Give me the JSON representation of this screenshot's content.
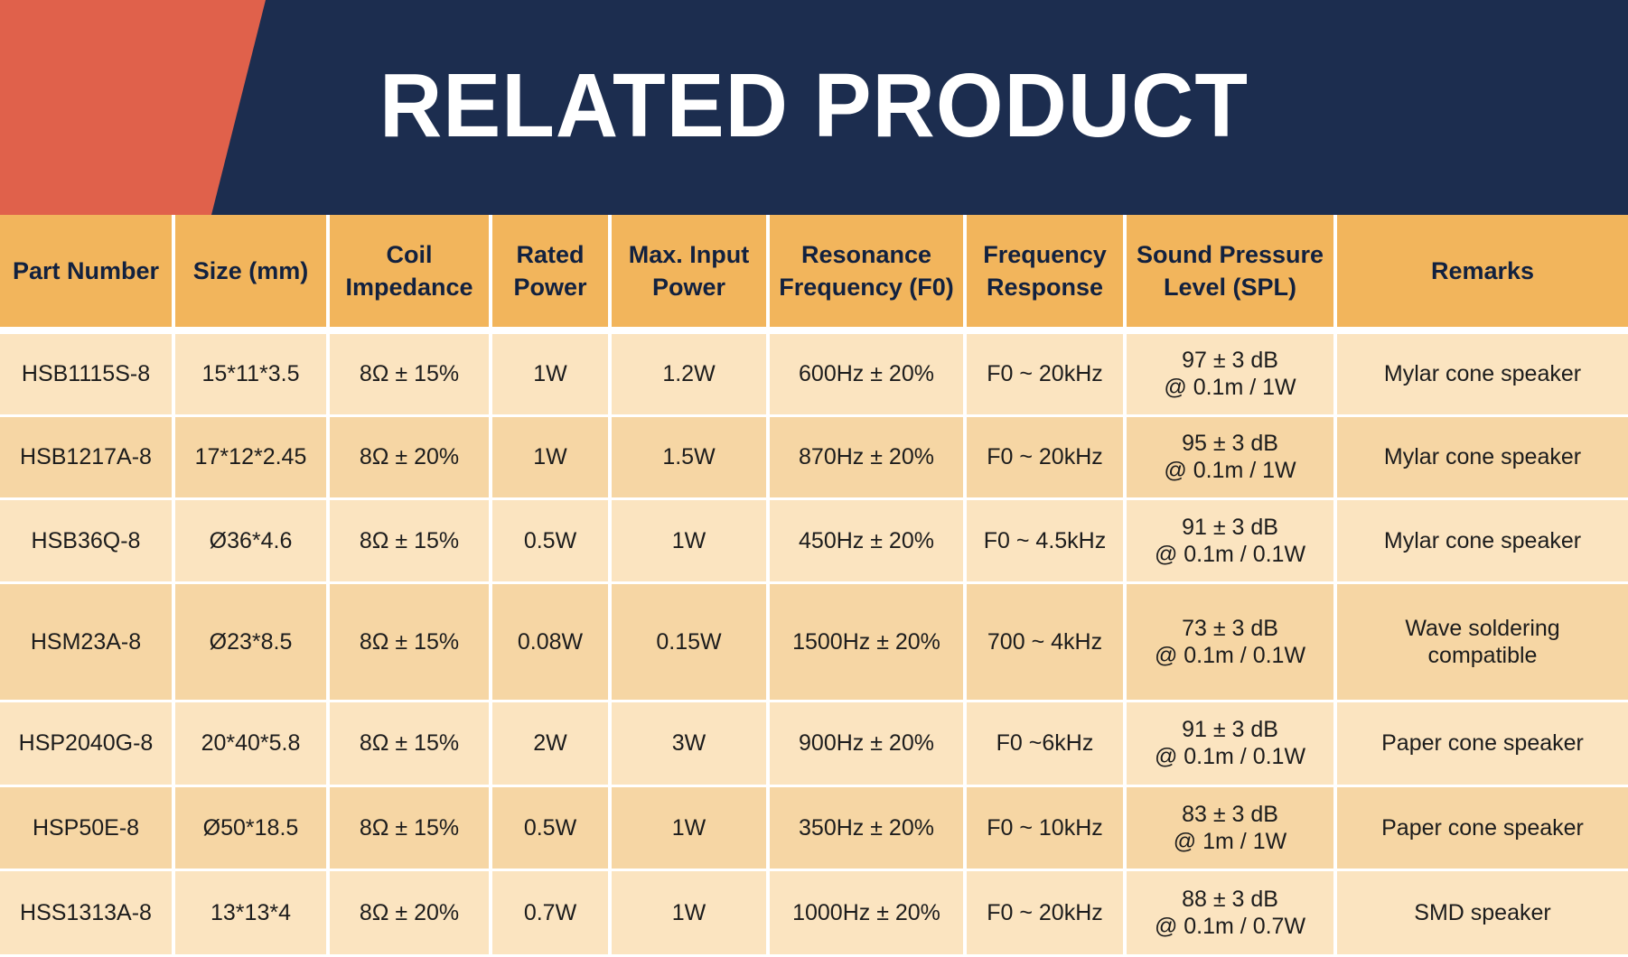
{
  "header": {
    "title": "RELATED PRODUCT",
    "colors": {
      "banner": "#1c2d4f",
      "accent": "#e0614b"
    }
  },
  "table": {
    "colors": {
      "header_bg": "#f2b55c",
      "row_light": "#fbe4c0",
      "row_dark": "#f6d6a4"
    },
    "columns": [
      {
        "lines": [
          "Part Number"
        ]
      },
      {
        "lines": [
          "Size (mm)"
        ]
      },
      {
        "lines": [
          "Coil",
          "Impedance"
        ]
      },
      {
        "lines": [
          "Rated",
          "Power"
        ]
      },
      {
        "lines": [
          "Max. Input",
          "Power"
        ]
      },
      {
        "lines": [
          "Resonance",
          "Frequency (F0)"
        ]
      },
      {
        "lines": [
          "Frequency",
          "Response"
        ]
      },
      {
        "lines": [
          "Sound Pressure",
          "Level (SPL)"
        ]
      },
      {
        "lines": [
          "Remarks"
        ]
      }
    ],
    "rows": [
      {
        "part_number": "HSB1115S-8",
        "size": "15*11*3.5",
        "coil_impedance": "8Ω ± 15%",
        "rated_power": "1W",
        "max_input_power": "1.2W",
        "resonance_frequency": "600Hz ± 20%",
        "frequency_response": "F0 ~ 20kHz",
        "spl": [
          "97 ± 3 dB",
          "@ 0.1m / 1W"
        ],
        "remarks": [
          "Mylar cone speaker"
        ]
      },
      {
        "part_number": "HSB1217A-8",
        "size": "17*12*2.45",
        "coil_impedance": "8Ω ± 20%",
        "rated_power": "1W",
        "max_input_power": "1.5W",
        "resonance_frequency": "870Hz ± 20%",
        "frequency_response": "F0 ~ 20kHz",
        "spl": [
          "95 ± 3 dB",
          "@ 0.1m / 1W"
        ],
        "remarks": [
          "Mylar cone speaker"
        ]
      },
      {
        "part_number": "HSB36Q-8",
        "size": "Ø36*4.6",
        "coil_impedance": "8Ω ± 15%",
        "rated_power": "0.5W",
        "max_input_power": "1W",
        "resonance_frequency": "450Hz ± 20%",
        "frequency_response": "F0 ~ 4.5kHz",
        "spl": [
          "91 ± 3 dB",
          "@ 0.1m / 0.1W"
        ],
        "remarks": [
          "Mylar cone speaker"
        ]
      },
      {
        "part_number": "HSM23A-8",
        "size": "Ø23*8.5",
        "coil_impedance": "8Ω ± 15%",
        "rated_power": "0.08W",
        "max_input_power": "0.15W",
        "resonance_frequency": "1500Hz ± 20%",
        "frequency_response": "700 ~ 4kHz",
        "spl": [
          "73 ± 3 dB",
          "@ 0.1m / 0.1W"
        ],
        "remarks": [
          "Wave soldering",
          "compatible"
        ]
      },
      {
        "part_number": "HSP2040G-8",
        "size": "20*40*5.8",
        "coil_impedance": "8Ω ± 15%",
        "rated_power": "2W",
        "max_input_power": "3W",
        "resonance_frequency": "900Hz ± 20%",
        "frequency_response": "F0 ~6kHz",
        "spl": [
          "91 ± 3 dB",
          "@ 0.1m / 0.1W"
        ],
        "remarks": [
          "Paper cone speaker"
        ]
      },
      {
        "part_number": "HSP50E-8",
        "size": "Ø50*18.5",
        "coil_impedance": "8Ω ± 15%",
        "rated_power": "0.5W",
        "max_input_power": "1W",
        "resonance_frequency": "350Hz ± 20%",
        "frequency_response": "F0 ~ 10kHz",
        "spl": [
          "83 ± 3 dB",
          "@ 1m / 1W"
        ],
        "remarks": [
          "Paper cone speaker"
        ]
      },
      {
        "part_number": "HSS1313A-8",
        "size": "13*13*4",
        "coil_impedance": "8Ω ± 20%",
        "rated_power": "0.7W",
        "max_input_power": "1W",
        "resonance_frequency": "1000Hz ± 20%",
        "frequency_response": "F0 ~ 20kHz",
        "spl": [
          "88 ± 3 dB",
          "@ 0.1m / 0.7W"
        ],
        "remarks": [
          "SMD speaker"
        ]
      }
    ]
  }
}
